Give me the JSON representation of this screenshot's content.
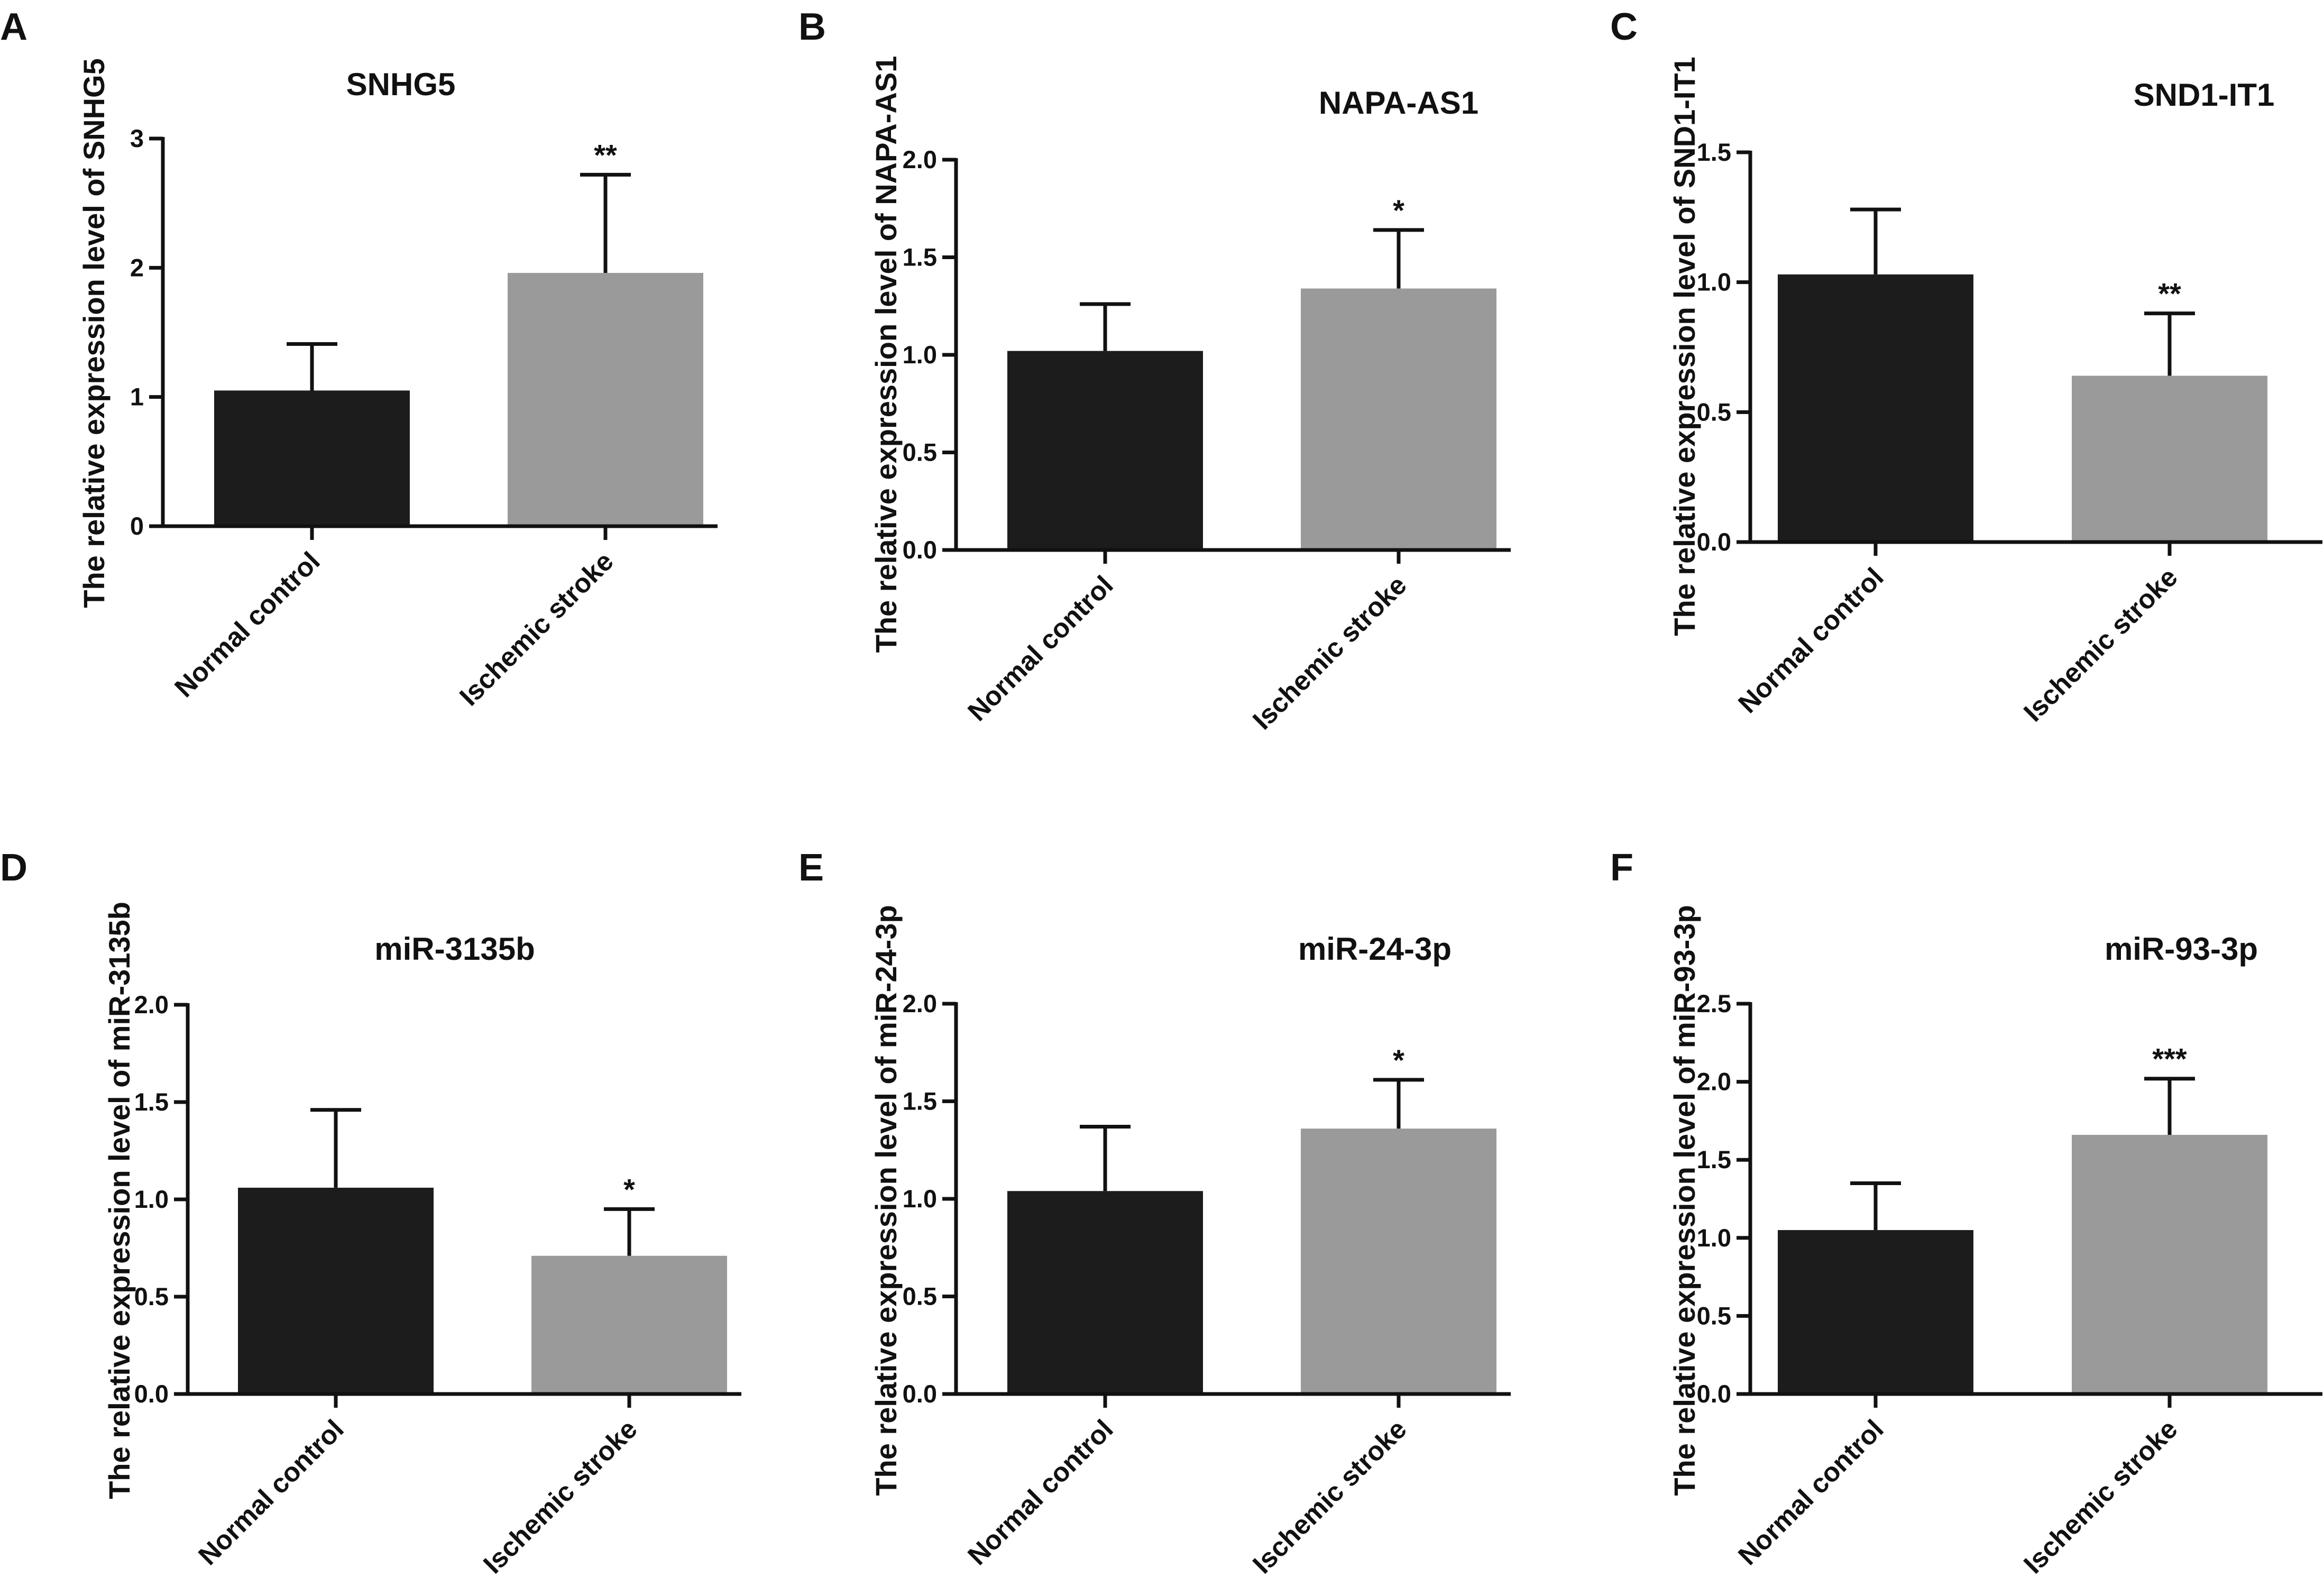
{
  "chart_data": [
    {
      "panel": "A",
      "type": "bar",
      "title": "SNHG5",
      "ylabel": "The relative expression level of SNHG5",
      "categories": [
        "Normal control",
        "Ischemic stroke"
      ],
      "values": [
        1.05,
        1.96
      ],
      "errors": [
        0.36,
        0.76
      ],
      "significance": [
        "",
        "**"
      ],
      "ylim": [
        0,
        3
      ],
      "yticks": [
        0,
        1,
        2,
        3
      ],
      "ytick_labels": [
        "0",
        "1",
        "2",
        "3"
      ],
      "bar_colors": [
        "#1c1c1c",
        "#9a9a9a"
      ]
    },
    {
      "panel": "B",
      "type": "bar",
      "title": "NAPA-AS1",
      "ylabel": "The relative expression level of NAPA-AS1",
      "categories": [
        "Normal control",
        "Ischemic stroke"
      ],
      "values": [
        1.02,
        1.34
      ],
      "errors": [
        0.24,
        0.3
      ],
      "significance": [
        "",
        "*"
      ],
      "ylim": [
        0,
        2.0
      ],
      "yticks": [
        0,
        0.5,
        1.0,
        1.5,
        2.0
      ],
      "ytick_labels": [
        "0.0",
        "0.5",
        "1.0",
        "1.5",
        "2.0"
      ],
      "bar_colors": [
        "#1c1c1c",
        "#9a9a9a"
      ]
    },
    {
      "panel": "C",
      "type": "bar",
      "title": "SND1-IT1",
      "ylabel": "The relative expression level of SND1-IT1",
      "categories": [
        "Normal control",
        "Ischemic stroke"
      ],
      "values": [
        1.03,
        0.64
      ],
      "errors": [
        0.25,
        0.24
      ],
      "significance": [
        "",
        "**"
      ],
      "ylim": [
        0,
        1.5
      ],
      "yticks": [
        0,
        0.5,
        1.0,
        1.5
      ],
      "ytick_labels": [
        "0.0",
        "0.5",
        "1.0",
        "1.5"
      ],
      "bar_colors": [
        "#1c1c1c",
        "#9a9a9a"
      ]
    },
    {
      "panel": "D",
      "type": "bar",
      "title": "miR-3135b",
      "ylabel": "The relative expression level of miR-3135b",
      "categories": [
        "Normal control",
        "Ischemic stroke"
      ],
      "values": [
        1.06,
        0.71
      ],
      "errors": [
        0.4,
        0.24
      ],
      "significance": [
        "",
        "*"
      ],
      "ylim": [
        0,
        2.0
      ],
      "yticks": [
        0,
        0.5,
        1.0,
        1.5,
        2.0
      ],
      "ytick_labels": [
        "0.0",
        "0.5",
        "1.0",
        "1.5",
        "2.0"
      ],
      "bar_colors": [
        "#1c1c1c",
        "#9a9a9a"
      ]
    },
    {
      "panel": "E",
      "type": "bar",
      "title": "miR-24-3p",
      "ylabel": "The relative expression level of miR-24-3p",
      "categories": [
        "Normal control",
        "Ischemic stroke"
      ],
      "values": [
        1.04,
        1.36
      ],
      "errors": [
        0.33,
        0.25
      ],
      "significance": [
        "",
        "*"
      ],
      "ylim": [
        0,
        2.0
      ],
      "yticks": [
        0,
        0.5,
        1.0,
        1.5,
        2.0
      ],
      "ytick_labels": [
        "0.0",
        "0.5",
        "1.0",
        "1.5",
        "2.0"
      ],
      "bar_colors": [
        "#1c1c1c",
        "#9a9a9a"
      ]
    },
    {
      "panel": "F",
      "type": "bar",
      "title": "miR-93-3p",
      "ylabel": "The relative expression level of miR-93-3p",
      "categories": [
        "Normal control",
        "Ischemic stroke"
      ],
      "values": [
        1.05,
        1.66
      ],
      "errors": [
        0.3,
        0.36
      ],
      "significance": [
        "",
        "***"
      ],
      "ylim": [
        0,
        2.5
      ],
      "yticks": [
        0,
        0.5,
        1.0,
        1.5,
        2.0,
        2.5
      ],
      "ytick_labels": [
        "0.0",
        "0.5",
        "1.0",
        "1.5",
        "2.0",
        "2.5"
      ],
      "bar_colors": [
        "#1c1c1c",
        "#9a9a9a"
      ]
    }
  ]
}
